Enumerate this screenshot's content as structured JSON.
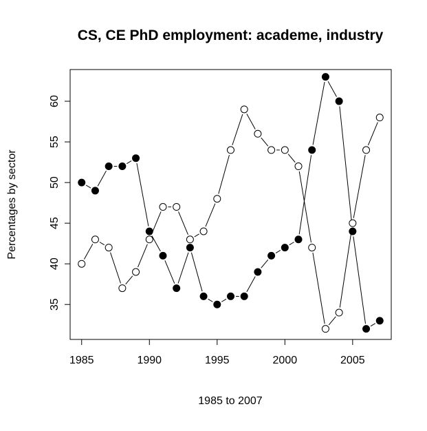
{
  "chart_data": {
    "type": "line",
    "title": "CS, CE PhD employment: academe, industry",
    "xlabel": "1985 to 2007",
    "ylabel": "Percentages by sector",
    "xlim": [
      1984.15,
      2007.85
    ],
    "ylim": [
      30.7,
      63.9
    ],
    "x_ticks": [
      1985,
      1990,
      1995,
      2000,
      2005
    ],
    "y_ticks": [
      35,
      40,
      45,
      50,
      55,
      60
    ],
    "grid": false,
    "legend": null,
    "x": [
      1985,
      1986,
      1987,
      1988,
      1989,
      1990,
      1991,
      1992,
      1993,
      1994,
      1995,
      1996,
      1997,
      1998,
      1999,
      2000,
      2001,
      2002,
      2003,
      2004,
      2005,
      2006,
      2007
    ],
    "series": [
      {
        "marker": "filled-circle",
        "color": "#000000",
        "values": [
          50,
          49,
          52,
          52,
          53,
          44,
          41,
          37,
          42,
          36,
          35,
          36,
          36,
          39,
          41,
          42,
          43,
          54,
          63,
          60,
          44,
          32,
          33
        ]
      },
      {
        "marker": "open-circle",
        "color": "#000000",
        "values": [
          40,
          43,
          42,
          37,
          39,
          43,
          47,
          47,
          43,
          44,
          48,
          54,
          59,
          56,
          54,
          54,
          52,
          42,
          32,
          34,
          45,
          54,
          58
        ]
      }
    ]
  }
}
